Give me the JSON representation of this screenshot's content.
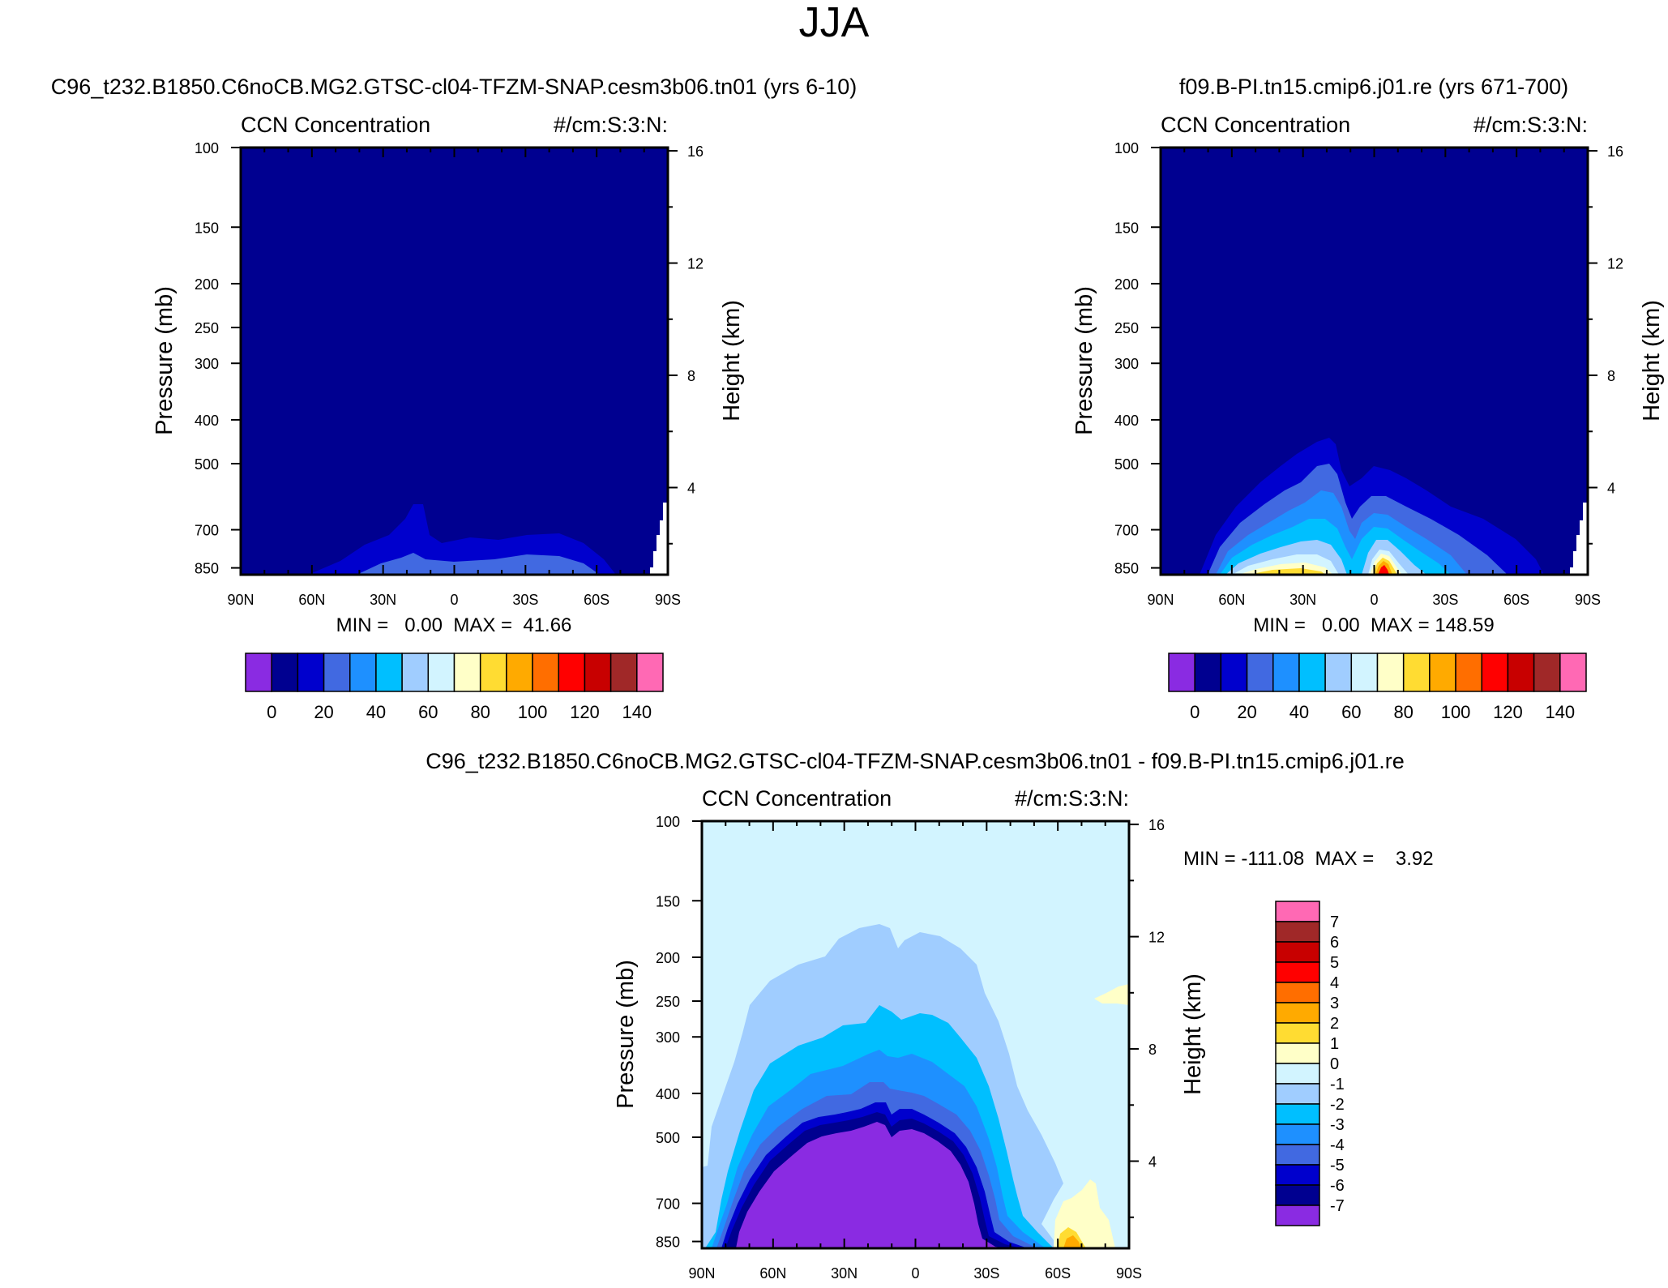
{
  "figure": {
    "title": "JJA"
  },
  "panels": {
    "model": {
      "case_title": "C96_t232.B1850.C6noCB.MG2.GTSC-cl04-TFZM-SNAP.cesm3b06.tn01 (yrs 6-10)",
      "variable": "CCN Concentration",
      "units": "#/cm:S:3:N:",
      "stats_text": "MIN =   0.00  MAX =  41.66"
    },
    "control": {
      "case_title": "f09.B-PI.tn15.cmip6.j01.re (yrs 671-700)",
      "variable": "CCN Concentration",
      "units": "#/cm:S:3:N:",
      "stats_text": "MIN =   0.00  MAX = 148.59"
    },
    "difference": {
      "case_title": "C96_t232.B1850.C6noCB.MG2.GTSC-cl04-TFZM-SNAP.cesm3b06.tn01 - f09.B-PI.tn15.cmip6.j01.re",
      "variable": "CCN Concentration",
      "units": "#/cm:S:3:N:",
      "stats_text": "MIN = -111.08  MAX =    3.92"
    }
  },
  "colors": {
    "abs_levels": [
      "#8a2be2",
      "#000090",
      "#0000cd",
      "#4169e1",
      "#1e90ff",
      "#00bfff",
      "#a0cdff",
      "#d2f4ff",
      "#ffffc8",
      "#ffdc32",
      "#ffaa00",
      "#ff6e00",
      "#ff0000",
      "#c80000",
      "#a02828",
      "#ff69b4"
    ],
    "diff_levels": [
      "#8a2be2",
      "#000090",
      "#0000cd",
      "#4169e1",
      "#1e90ff",
      "#00bfff",
      "#a0cdff",
      "#d2f4ff",
      "#ffffc8",
      "#ffdc32",
      "#ffaa00",
      "#ff6e00",
      "#ff0000",
      "#c80000",
      "#a02828",
      "#ff69b4"
    ]
  },
  "chart_data": [
    {
      "type": "heatmap",
      "title": "C96_t232.B1850.C6noCB.MG2.GTSC-cl04-TFZM-SNAP.cesm3b06.tn01 (yrs 6-10)",
      "xlabel": "",
      "ylabel": "Pressure (mb)",
      "y2label": "Height (km)",
      "xticks": [
        "90N",
        "60N",
        "30N",
        "0",
        "30S",
        "60S",
        "90S"
      ],
      "yticks": [
        100,
        150,
        200,
        250,
        300,
        400,
        500,
        700,
        850
      ],
      "y2ticks": [
        16,
        12,
        8,
        4
      ],
      "colorbar_ticks": [
        0,
        20,
        40,
        60,
        80,
        100,
        120,
        140
      ],
      "min": 0.0,
      "max": 41.66,
      "contours": [
        {
          "level_index": 2,
          "bounds": [
            [
              1.8,
              0.9
            ],
            [
              6.0,
              0.88
            ],
            [
              10,
              0.86
            ],
            [
              13,
              0.86
            ],
            [
              13.5,
              0.82
            ],
            [
              15,
              0.86
            ],
            [
              17,
              0.88
            ],
            [
              22,
              0.9
            ],
            [
              28,
              0.88
            ],
            [
              35,
              0.88
            ],
            [
              42,
              0.9
            ],
            [
              46,
              0.94
            ],
            [
              50,
              1.0
            ],
            [
              1.8,
              1.0
            ]
          ]
        },
        {
          "level_index": 3,
          "bounds": [
            [
              11,
              0.94
            ],
            [
              14,
              0.92
            ],
            [
              15.5,
              0.91
            ],
            [
              17,
              0.94
            ],
            [
              22,
              0.95
            ],
            [
              29,
              0.94
            ],
            [
              35,
              0.94
            ],
            [
              42,
              0.96
            ],
            [
              46,
              1.0
            ],
            [
              11,
              1.0
            ]
          ]
        }
      ]
    },
    {
      "type": "heatmap",
      "title": "f09.B-PI.tn15.cmip6.j01.re (yrs 671-700)",
      "xlabel": "",
      "ylabel": "Pressure (mb)",
      "y2label": "Height (km)",
      "xticks": [
        "90N",
        "60N",
        "30N",
        "0",
        "30S",
        "60S",
        "90S"
      ],
      "yticks": [
        100,
        150,
        200,
        250,
        300,
        400,
        500,
        700,
        850
      ],
      "y2ticks": [
        16,
        12,
        8,
        4
      ],
      "colorbar_ticks": [
        0,
        20,
        40,
        60,
        80,
        100,
        120,
        140
      ],
      "min": 0.0,
      "max": 148.59,
      "contours": [
        {
          "level_index": 2,
          "bounds": [
            [
              16,
              0.82
            ],
            [
              20,
              0.72
            ],
            [
              24,
              0.67
            ],
            [
              26,
              0.7
            ],
            [
              30,
              0.69
            ],
            [
              32,
              0.62
            ],
            [
              34,
              0.69
            ],
            [
              37,
              0.74
            ],
            [
              44,
              0.78
            ],
            [
              52,
              0.84
            ],
            [
              58,
              0.93
            ],
            [
              62,
              1.0
            ],
            [
              16,
              1.0
            ]
          ]
        },
        {
          "level_index": 3,
          "bounds": [
            [
              18,
              0.86
            ],
            [
              22,
              0.77
            ],
            [
              25,
              0.73
            ],
            [
              28,
              0.74
            ],
            [
              31,
              0.66
            ],
            [
              33,
              0.72
            ],
            [
              35,
              0.84
            ],
            [
              37,
              0.8
            ],
            [
              43,
              0.82
            ],
            [
              50,
              0.87
            ],
            [
              55,
              0.93
            ],
            [
              58,
              1.0
            ],
            [
              18,
              1.0
            ]
          ]
        },
        {
          "level_index": 5,
          "bounds": [
            [
              19,
              0.91
            ],
            [
              23,
              0.82
            ],
            [
              27,
              0.81
            ],
            [
              30,
              0.85
            ],
            [
              33,
              0.93
            ],
            [
              34,
              0.93
            ],
            [
              36,
              0.86
            ],
            [
              40,
              0.86
            ],
            [
              46,
              0.9
            ],
            [
              53,
              1.0
            ],
            [
              19,
              1.0
            ]
          ]
        },
        {
          "level_index": 7,
          "bounds": [
            [
              21,
              0.96
            ],
            [
              24,
              0.91
            ],
            [
              28,
              0.92
            ],
            [
              31,
              0.97
            ],
            [
              32,
              1.0
            ],
            [
              21,
              1.0
            ]
          ]
        },
        {
          "level_index": 12,
          "bounds": [
            [
              37.5,
              0.96
            ],
            [
              38.5,
              0.92
            ],
            [
              39.5,
              0.96
            ],
            [
              40,
              1.0
            ],
            [
              37,
              1.0
            ]
          ]
        }
      ]
    },
    {
      "type": "heatmap",
      "title": "C96_t232.B1850.C6noCB.MG2.GTSC-cl04-TFZM-SNAP.cesm3b06.tn01 - f09.B-PI.tn15.cmip6.j01.re",
      "xlabel": "",
      "ylabel": "Pressure (mb)",
      "y2label": "Height (km)",
      "xticks": [
        "90N",
        "60N",
        "30N",
        "0",
        "30S",
        "60S",
        "90S"
      ],
      "yticks": [
        100,
        150,
        200,
        250,
        300,
        400,
        500,
        700,
        850
      ],
      "y2ticks": [
        16,
        12,
        8,
        4
      ],
      "colorbar_ticks": [
        7,
        6,
        5,
        4,
        3,
        2,
        1,
        0,
        -1,
        -2,
        -3,
        -4,
        -5,
        -6,
        -7
      ],
      "min": -111.08,
      "max": 3.92
    }
  ]
}
